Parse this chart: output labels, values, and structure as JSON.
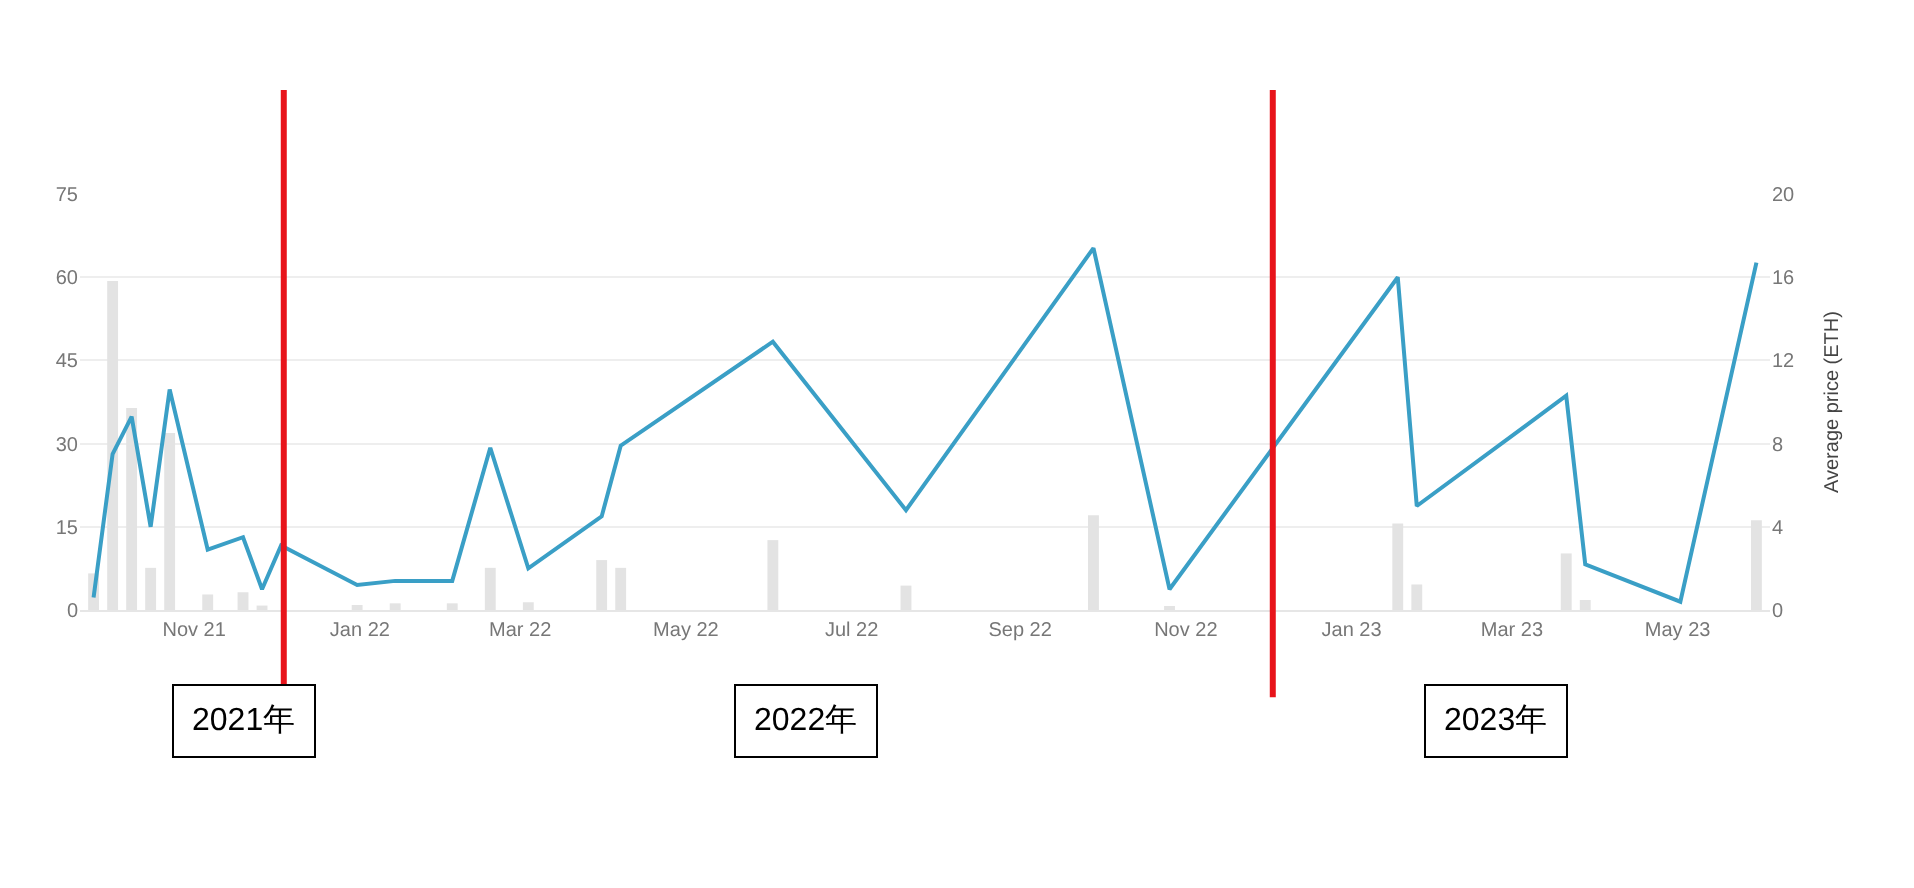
{
  "chart_data": {
    "type": "bar",
    "x": [
      "2021-09-25",
      "2021-10-02",
      "2021-10-09",
      "2021-10-16",
      "2021-10-23",
      "2021-11-06",
      "2021-11-19",
      "2021-11-26",
      "2021-12-03",
      "2021-12-31",
      "2022-01-14",
      "2022-02-04",
      "2022-02-18",
      "2022-03-04",
      "2022-03-31",
      "2022-04-07",
      "2022-06-02",
      "2022-07-21",
      "2022-09-28",
      "2022-10-26",
      "2023-01-18",
      "2023-01-25",
      "2023-03-21",
      "2023-03-28",
      "2023-05-02",
      "2023-05-30"
    ],
    "series": [
      {
        "color": "#e3e3e3",
        "values": [
          6.6,
          59.3,
          36.4,
          7.6,
          31.9,
          2.8,
          3.2,
          0.8,
          null,
          0.9,
          1.2,
          1.2,
          7.6,
          1.4,
          9.0,
          7.6,
          12.6,
          4.4,
          17.1,
          0.6,
          15.6,
          4.6,
          10.2,
          1.8,
          null,
          16.2
        ]
      },
      {
        "type": "line",
        "axis": "y2",
        "color": "#3a9fc6",
        "values": [
          0.6,
          7.5,
          9.3,
          4.0,
          10.6,
          2.9,
          3.5,
          1.0,
          3.1,
          1.2,
          1.4,
          1.4,
          7.8,
          2.0,
          4.5,
          7.9,
          12.9,
          4.8,
          17.4,
          1.0,
          16.0,
          5.0,
          10.3,
          2.2,
          0.4,
          16.7
        ]
      }
    ],
    "y2label": "Average price (ETH)",
    "xlim": [
      "2021-09-20",
      "2023-06-04"
    ],
    "xticks": [
      {
        "value": "2021-11-01",
        "label": "Nov 21"
      },
      {
        "value": "2022-01-01",
        "label": "Jan 22"
      },
      {
        "value": "2022-03-01",
        "label": "Mar 22"
      },
      {
        "value": "2022-05-01",
        "label": "May 22"
      },
      {
        "value": "2022-07-01",
        "label": "Jul 22"
      },
      {
        "value": "2022-09-01",
        "label": "Sep 22"
      },
      {
        "value": "2022-11-01",
        "label": "Nov 22"
      },
      {
        "value": "2023-01-01",
        "label": "Jan 23"
      },
      {
        "value": "2023-03-01",
        "label": "Mar 23"
      },
      {
        "value": "2023-05-01",
        "label": "May 23"
      }
    ],
    "ylim": [
      0,
      75
    ],
    "yticks": [
      0,
      15,
      30,
      45,
      60,
      75
    ],
    "y2lim": [
      0,
      20
    ],
    "y2ticks": [
      0,
      4,
      8,
      12,
      16,
      20
    ],
    "ref_lines": [
      {
        "axis": "x",
        "value": "2021-12-04",
        "color": "#e8141b"
      },
      {
        "axis": "x",
        "value": "2022-12-03",
        "color": "#e8141b"
      }
    ],
    "annotations": [
      "2021年",
      "2022年",
      "2023年"
    ],
    "grid": "y",
    "marker": "none",
    "line_style": "solid"
  }
}
